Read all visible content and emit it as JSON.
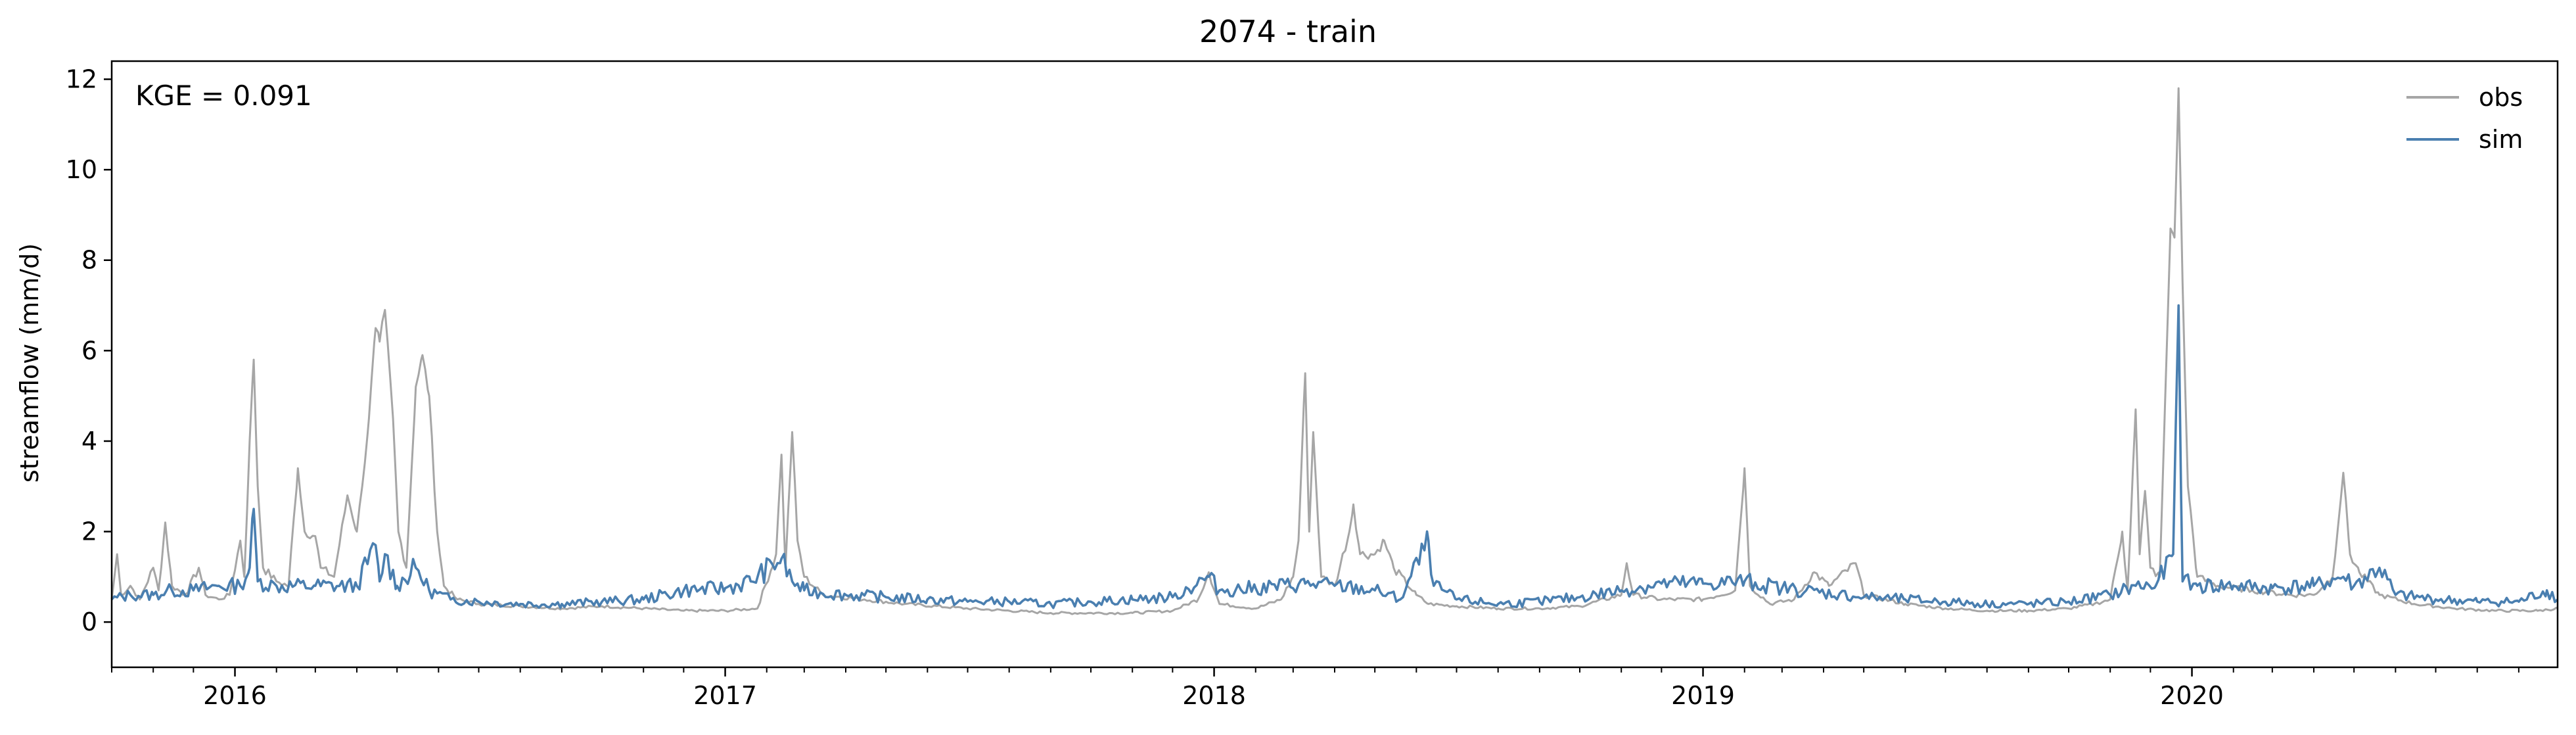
{
  "chart_data": {
    "type": "line",
    "title": "2074 - train",
    "xlabel": "",
    "ylabel": "streamflow (mm/d)",
    "annotation": "KGE = 0.091",
    "xlim": [
      "2015-10-01",
      "2020-09-30"
    ],
    "ylim": [
      -1.0,
      12.4
    ],
    "yticks": [
      0,
      2,
      4,
      6,
      8,
      10,
      12
    ],
    "xticks": [
      {
        "date": "2016-01-01",
        "label": "2016"
      },
      {
        "date": "2017-01-01",
        "label": "2017"
      },
      {
        "date": "2018-01-01",
        "label": "2018"
      },
      {
        "date": "2019-01-01",
        "label": "2019"
      },
      {
        "date": "2020-01-01",
        "label": "2020"
      }
    ],
    "minor_xticks": "monthly",
    "grid": false,
    "legend": "top-right",
    "series": [
      {
        "name": "obs",
        "color": "#a6a6a6",
        "points": [
          [
            "2015-10-01",
            0.5
          ],
          [
            "2015-10-05",
            1.5
          ],
          [
            "2015-10-08",
            0.6
          ],
          [
            "2015-10-15",
            0.8
          ],
          [
            "2015-10-22",
            0.5
          ],
          [
            "2015-11-01",
            1.2
          ],
          [
            "2015-11-05",
            0.7
          ],
          [
            "2015-11-10",
            2.2
          ],
          [
            "2015-11-15",
            0.8
          ],
          [
            "2015-11-25",
            0.6
          ],
          [
            "2015-12-05",
            1.2
          ],
          [
            "2015-12-10",
            0.6
          ],
          [
            "2015-12-20",
            0.5
          ],
          [
            "2015-12-28",
            0.6
          ],
          [
            "2016-01-05",
            1.8
          ],
          [
            "2016-01-08",
            1.0
          ],
          [
            "2016-01-12",
            4.0
          ],
          [
            "2016-01-15",
            5.8
          ],
          [
            "2016-01-18",
            3.0
          ],
          [
            "2016-01-22",
            1.2
          ],
          [
            "2016-02-01",
            0.9
          ],
          [
            "2016-02-10",
            0.8
          ],
          [
            "2016-02-17",
            3.4
          ],
          [
            "2016-02-22",
            2.0
          ],
          [
            "2016-03-01",
            1.9
          ],
          [
            "2016-03-05",
            1.2
          ],
          [
            "2016-03-15",
            1.0
          ],
          [
            "2016-03-25",
            2.8
          ],
          [
            "2016-04-01",
            2.0
          ],
          [
            "2016-04-05",
            3.0
          ],
          [
            "2016-04-10",
            4.5
          ],
          [
            "2016-04-15",
            6.5
          ],
          [
            "2016-04-18",
            6.2
          ],
          [
            "2016-04-22",
            6.9
          ],
          [
            "2016-04-28",
            4.5
          ],
          [
            "2016-05-02",
            2.0
          ],
          [
            "2016-05-08",
            1.2
          ],
          [
            "2016-05-15",
            5.2
          ],
          [
            "2016-05-20",
            5.9
          ],
          [
            "2016-05-25",
            5.0
          ],
          [
            "2016-05-31",
            2.0
          ],
          [
            "2016-06-05",
            0.8
          ],
          [
            "2016-06-15",
            0.5
          ],
          [
            "2016-07-01",
            0.4
          ],
          [
            "2016-08-01",
            0.35
          ],
          [
            "2016-09-01",
            0.3
          ],
          [
            "2016-10-01",
            0.35
          ],
          [
            "2016-11-01",
            0.3
          ],
          [
            "2016-12-01",
            0.25
          ],
          [
            "2017-01-01",
            0.25
          ],
          [
            "2017-01-25",
            0.3
          ],
          [
            "2017-02-08",
            1.5
          ],
          [
            "2017-02-12",
            3.7
          ],
          [
            "2017-02-15",
            1.2
          ],
          [
            "2017-02-20",
            4.2
          ],
          [
            "2017-02-24",
            1.8
          ],
          [
            "2017-03-01",
            1.0
          ],
          [
            "2017-03-15",
            0.6
          ],
          [
            "2017-04-15",
            0.5
          ],
          [
            "2017-05-15",
            0.4
          ],
          [
            "2017-07-01",
            0.3
          ],
          [
            "2017-09-01",
            0.2
          ],
          [
            "2017-11-01",
            0.2
          ],
          [
            "2017-12-01",
            0.25
          ],
          [
            "2017-12-20",
            0.5
          ],
          [
            "2017-12-28",
            1.1
          ],
          [
            "2018-01-05",
            0.4
          ],
          [
            "2018-02-01",
            0.3
          ],
          [
            "2018-02-20",
            0.5
          ],
          [
            "2018-03-01",
            1.0
          ],
          [
            "2018-03-05",
            1.8
          ],
          [
            "2018-03-10",
            5.5
          ],
          [
            "2018-03-13",
            2.0
          ],
          [
            "2018-03-16",
            4.2
          ],
          [
            "2018-03-22",
            1.0
          ],
          [
            "2018-04-01",
            0.8
          ],
          [
            "2018-04-12",
            2.0
          ],
          [
            "2018-04-15",
            2.6
          ],
          [
            "2018-04-20",
            1.5
          ],
          [
            "2018-05-01",
            1.5
          ],
          [
            "2018-05-08",
            1.8
          ],
          [
            "2018-05-15",
            1.2
          ],
          [
            "2018-06-01",
            0.6
          ],
          [
            "2018-06-10",
            0.4
          ],
          [
            "2018-07-01",
            0.35
          ],
          [
            "2018-08-01",
            0.3
          ],
          [
            "2018-09-01",
            0.3
          ],
          [
            "2018-10-01",
            0.35
          ],
          [
            "2018-11-01",
            0.6
          ],
          [
            "2018-11-05",
            1.3
          ],
          [
            "2018-11-10",
            0.6
          ],
          [
            "2018-12-01",
            0.5
          ],
          [
            "2019-01-01",
            0.5
          ],
          [
            "2019-01-25",
            0.7
          ],
          [
            "2019-02-01",
            3.4
          ],
          [
            "2019-02-05",
            0.8
          ],
          [
            "2019-02-20",
            0.4
          ],
          [
            "2019-03-10",
            0.5
          ],
          [
            "2019-03-25",
            1.1
          ],
          [
            "2019-04-05",
            0.8
          ],
          [
            "2019-04-25",
            1.3
          ],
          [
            "2019-05-01",
            0.6
          ],
          [
            "2019-06-01",
            0.4
          ],
          [
            "2019-07-01",
            0.3
          ],
          [
            "2019-08-01",
            0.25
          ],
          [
            "2019-09-01",
            0.25
          ],
          [
            "2019-10-01",
            0.3
          ],
          [
            "2019-10-20",
            0.4
          ],
          [
            "2019-11-01",
            0.5
          ],
          [
            "2019-11-10",
            2.0
          ],
          [
            "2019-11-14",
            0.7
          ],
          [
            "2019-11-20",
            4.7
          ],
          [
            "2019-11-23",
            1.5
          ],
          [
            "2019-11-27",
            2.9
          ],
          [
            "2019-12-01",
            1.2
          ],
          [
            "2019-12-08",
            1.0
          ],
          [
            "2019-12-16",
            8.7
          ],
          [
            "2019-12-19",
            8.5
          ],
          [
            "2019-12-22",
            11.8
          ],
          [
            "2019-12-25",
            7.5
          ],
          [
            "2019-12-29",
            3.0
          ],
          [
            "2020-01-05",
            1.0
          ],
          [
            "2020-01-20",
            0.8
          ],
          [
            "2020-02-15",
            0.7
          ],
          [
            "2020-03-15",
            0.6
          ],
          [
            "2020-04-01",
            0.6
          ],
          [
            "2020-04-15",
            1.0
          ],
          [
            "2020-04-23",
            3.3
          ],
          [
            "2020-04-28",
            1.5
          ],
          [
            "2020-05-05",
            1.1
          ],
          [
            "2020-05-20",
            0.6
          ],
          [
            "2020-06-15",
            0.4
          ],
          [
            "2020-07-15",
            0.3
          ],
          [
            "2020-08-15",
            0.25
          ],
          [
            "2020-09-15",
            0.25
          ],
          [
            "2020-09-30",
            0.3
          ]
        ]
      },
      {
        "name": "sim",
        "color": "#4a7fb0",
        "points": [
          [
            "2015-10-01",
            0.5
          ],
          [
            "2015-10-15",
            0.6
          ],
          [
            "2015-11-01",
            0.6
          ],
          [
            "2015-11-15",
            0.7
          ],
          [
            "2015-12-01",
            0.7
          ],
          [
            "2015-12-20",
            0.8
          ],
          [
            "2016-01-05",
            0.8
          ],
          [
            "2016-01-12",
            1.2
          ],
          [
            "2016-01-15",
            2.5
          ],
          [
            "2016-01-18",
            0.9
          ],
          [
            "2016-02-01",
            0.8
          ],
          [
            "2016-03-01",
            0.8
          ],
          [
            "2016-04-01",
            0.8
          ],
          [
            "2016-04-15",
            1.7
          ],
          [
            "2016-04-18",
            0.9
          ],
          [
            "2016-04-22",
            1.5
          ],
          [
            "2016-05-01",
            0.8
          ],
          [
            "2016-05-15",
            1.2
          ],
          [
            "2016-05-25",
            0.7
          ],
          [
            "2016-06-10",
            0.5
          ],
          [
            "2016-07-01",
            0.45
          ],
          [
            "2016-08-01",
            0.4
          ],
          [
            "2016-09-01",
            0.4
          ],
          [
            "2016-10-01",
            0.45
          ],
          [
            "2016-11-01",
            0.5
          ],
          [
            "2016-12-01",
            0.7
          ],
          [
            "2017-01-01",
            0.75
          ],
          [
            "2017-01-20",
            0.9
          ],
          [
            "2017-02-12",
            1.4
          ],
          [
            "2017-02-20",
            0.9
          ],
          [
            "2017-03-01",
            0.7
          ],
          [
            "2017-04-01",
            0.6
          ],
          [
            "2017-05-01",
            0.55
          ],
          [
            "2017-06-01",
            0.5
          ],
          [
            "2017-07-01",
            0.45
          ],
          [
            "2017-08-01",
            0.45
          ],
          [
            "2017-09-01",
            0.4
          ],
          [
            "2017-10-01",
            0.45
          ],
          [
            "2017-11-01",
            0.5
          ],
          [
            "2017-12-01",
            0.55
          ],
          [
            "2017-12-28",
            1.0
          ],
          [
            "2018-01-05",
            0.7
          ],
          [
            "2018-02-01",
            0.75
          ],
          [
            "2018-03-10",
            0.85
          ],
          [
            "2018-04-01",
            0.8
          ],
          [
            "2018-05-01",
            0.7
          ],
          [
            "2018-05-20",
            0.5
          ],
          [
            "2018-06-10",
            1.8
          ],
          [
            "2018-06-14",
            0.8
          ],
          [
            "2018-07-01",
            0.5
          ],
          [
            "2018-08-01",
            0.4
          ],
          [
            "2018-09-01",
            0.45
          ],
          [
            "2018-10-01",
            0.55
          ],
          [
            "2018-11-01",
            0.7
          ],
          [
            "2018-12-01",
            0.85
          ],
          [
            "2019-01-01",
            0.85
          ],
          [
            "2019-02-01",
            0.9
          ],
          [
            "2019-03-01",
            0.75
          ],
          [
            "2019-04-01",
            0.65
          ],
          [
            "2019-05-01",
            0.55
          ],
          [
            "2019-06-01",
            0.5
          ],
          [
            "2019-07-01",
            0.45
          ],
          [
            "2019-08-01",
            0.4
          ],
          [
            "2019-09-01",
            0.4
          ],
          [
            "2019-10-01",
            0.45
          ],
          [
            "2019-11-01",
            0.6
          ],
          [
            "2019-11-20",
            0.8
          ],
          [
            "2019-12-05",
            0.8
          ],
          [
            "2019-12-18",
            1.5
          ],
          [
            "2019-12-22",
            7.0
          ],
          [
            "2019-12-25",
            0.9
          ],
          [
            "2020-01-05",
            0.8
          ],
          [
            "2020-02-01",
            0.8
          ],
          [
            "2020-03-01",
            0.75
          ],
          [
            "2020-04-01",
            0.8
          ],
          [
            "2020-04-23",
            1.0
          ],
          [
            "2020-05-01",
            0.8
          ],
          [
            "2020-05-20",
            1.2
          ],
          [
            "2020-06-01",
            0.6
          ],
          [
            "2020-07-01",
            0.5
          ],
          [
            "2020-08-01",
            0.45
          ],
          [
            "2020-09-01",
            0.45
          ],
          [
            "2020-09-22",
            0.7
          ],
          [
            "2020-09-30",
            0.5
          ]
        ]
      }
    ]
  }
}
